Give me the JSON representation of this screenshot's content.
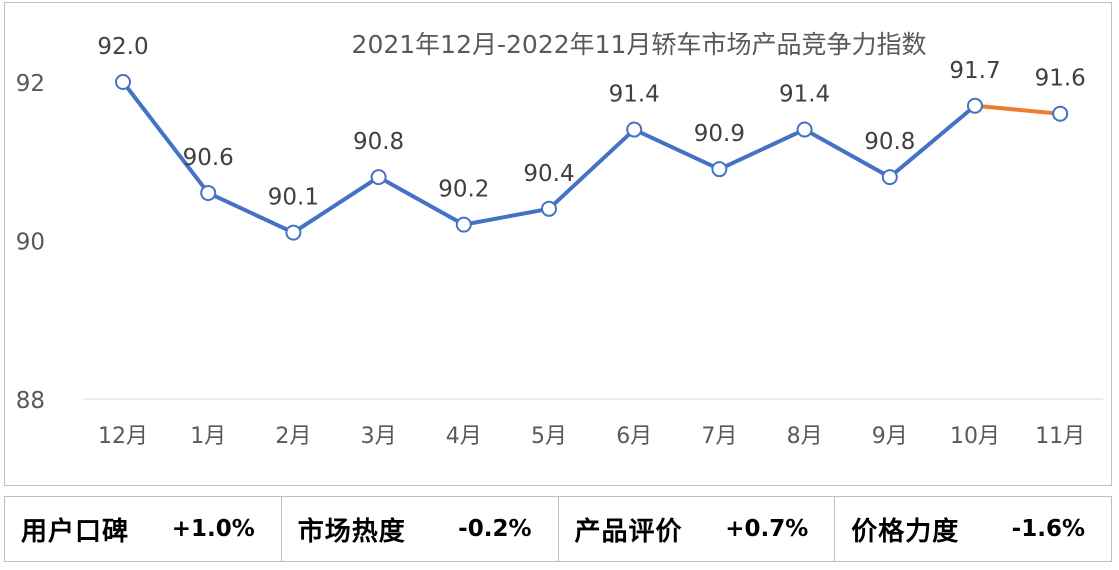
{
  "chart_data": {
    "type": "line",
    "title": "2021年12月-2022年11月轿车市场产品竞争力指数",
    "categories": [
      "12月",
      "1月",
      "2月",
      "3月",
      "4月",
      "5月",
      "6月",
      "7月",
      "8月",
      "9月",
      "10月",
      "11月"
    ],
    "values": [
      92.0,
      90.6,
      90.1,
      90.8,
      90.2,
      90.4,
      91.4,
      90.9,
      91.4,
      90.8,
      91.7,
      91.6
    ],
    "value_labels": [
      "92.0",
      "90.6",
      "90.1",
      "90.8",
      "90.2",
      "90.4",
      "91.4",
      "90.9",
      "91.4",
      "90.8",
      "91.7",
      "91.6"
    ],
    "y_ticks": [
      "88",
      "90",
      "92"
    ],
    "ylim": [
      88,
      92.8
    ],
    "line_color": "#4472c4",
    "highlight_color": "#ed7d31",
    "grid": false
  },
  "stats": [
    {
      "label": "用户口碑",
      "value": "+1.0%"
    },
    {
      "label": "市场热度",
      "value": "-0.2%"
    },
    {
      "label": "产品评价",
      "value": "+0.7%"
    },
    {
      "label": "价格力度",
      "value": "-1.6%"
    }
  ]
}
